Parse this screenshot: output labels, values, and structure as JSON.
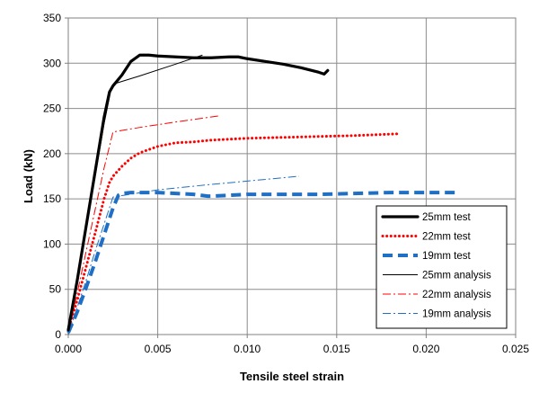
{
  "chart_data": {
    "type": "line",
    "xlabel": "Tensile steel strain",
    "ylabel": "Load  (kN)",
    "xlim": [
      0,
      0.025
    ],
    "ylim": [
      0,
      350
    ],
    "x_ticks": [
      "0.000",
      "0.005",
      "0.010",
      "0.015",
      "0.020",
      "0.025"
    ],
    "y_ticks": [
      "0",
      "50",
      "100",
      "150",
      "200",
      "250",
      "300",
      "350"
    ],
    "grid": true,
    "legend_position": "bottom-right",
    "series": [
      {
        "name": "25mm test",
        "color": "#000000",
        "style": "solid-thick",
        "points": [
          [
            0,
            5
          ],
          [
            0.0005,
            60
          ],
          [
            0.001,
            120
          ],
          [
            0.0015,
            180
          ],
          [
            0.002,
            240
          ],
          [
            0.0023,
            268
          ],
          [
            0.0025,
            275
          ],
          [
            0.003,
            287
          ],
          [
            0.0035,
            302
          ],
          [
            0.004,
            309
          ],
          [
            0.0045,
            309
          ],
          [
            0.005,
            308
          ],
          [
            0.006,
            307
          ],
          [
            0.007,
            306
          ],
          [
            0.008,
            306
          ],
          [
            0.009,
            307
          ],
          [
            0.0095,
            307
          ],
          [
            0.01,
            305
          ],
          [
            0.011,
            302
          ],
          [
            0.012,
            299
          ],
          [
            0.013,
            295
          ],
          [
            0.014,
            290
          ],
          [
            0.0143,
            288
          ],
          [
            0.0145,
            292
          ]
        ]
      },
      {
        "name": "22mm test",
        "color": "#ff0000",
        "style": "dotted",
        "points": [
          [
            0,
            5
          ],
          [
            0.0005,
            38
          ],
          [
            0.001,
            75
          ],
          [
            0.0015,
            112
          ],
          [
            0.002,
            150
          ],
          [
            0.0023,
            168
          ],
          [
            0.0025,
            175
          ],
          [
            0.003,
            186
          ],
          [
            0.0035,
            195
          ],
          [
            0.004,
            201
          ],
          [
            0.005,
            208
          ],
          [
            0.006,
            212
          ],
          [
            0.007,
            213
          ],
          [
            0.008,
            215
          ],
          [
            0.009,
            216
          ],
          [
            0.01,
            217
          ],
          [
            0.012,
            218
          ],
          [
            0.014,
            219
          ],
          [
            0.016,
            220
          ],
          [
            0.0185,
            222
          ]
        ]
      },
      {
        "name": "19mm test",
        "color": "#1f6fc5",
        "style": "dashed-thick",
        "points": [
          [
            0,
            2
          ],
          [
            0.0005,
            25
          ],
          [
            0.001,
            52
          ],
          [
            0.0015,
            80
          ],
          [
            0.002,
            110
          ],
          [
            0.0025,
            140
          ],
          [
            0.0028,
            154
          ],
          [
            0.003,
            156
          ],
          [
            0.0035,
            157
          ],
          [
            0.004,
            157
          ],
          [
            0.005,
            157
          ],
          [
            0.006,
            156
          ],
          [
            0.007,
            155
          ],
          [
            0.0078,
            153
          ],
          [
            0.008,
            153
          ],
          [
            0.009,
            154
          ],
          [
            0.01,
            155
          ],
          [
            0.012,
            155
          ],
          [
            0.014,
            155
          ],
          [
            0.016,
            156
          ],
          [
            0.018,
            157
          ],
          [
            0.02,
            157
          ],
          [
            0.0217,
            157
          ]
        ]
      },
      {
        "name": "25mm analysis",
        "color": "#000000",
        "style": "solid-thin",
        "points": [
          [
            0,
            0
          ],
          [
            0.0005,
            58
          ],
          [
            0.001,
            116
          ],
          [
            0.0015,
            175
          ],
          [
            0.002,
            233
          ],
          [
            0.0024,
            272
          ],
          [
            0.0027,
            278
          ],
          [
            0.004,
            286
          ],
          [
            0.006,
            299
          ],
          [
            0.0075,
            309
          ]
        ]
      },
      {
        "name": "22mm analysis",
        "color": "#ff0000",
        "style": "dashdot",
        "points": [
          [
            0,
            0
          ],
          [
            0.0005,
            46
          ],
          [
            0.001,
            92
          ],
          [
            0.0015,
            138
          ],
          [
            0.002,
            184
          ],
          [
            0.0025,
            224
          ],
          [
            0.004,
            229
          ],
          [
            0.006,
            235
          ],
          [
            0.0085,
            242
          ]
        ]
      },
      {
        "name": "19mm analysis",
        "color": "#1f6fc5",
        "style": "dashdot",
        "points": [
          [
            0,
            0
          ],
          [
            0.0005,
            30
          ],
          [
            0.001,
            60
          ],
          [
            0.0015,
            92
          ],
          [
            0.002,
            122
          ],
          [
            0.0025,
            152
          ],
          [
            0.005,
            160
          ],
          [
            0.008,
            166
          ],
          [
            0.0129,
            175
          ]
        ]
      }
    ]
  }
}
